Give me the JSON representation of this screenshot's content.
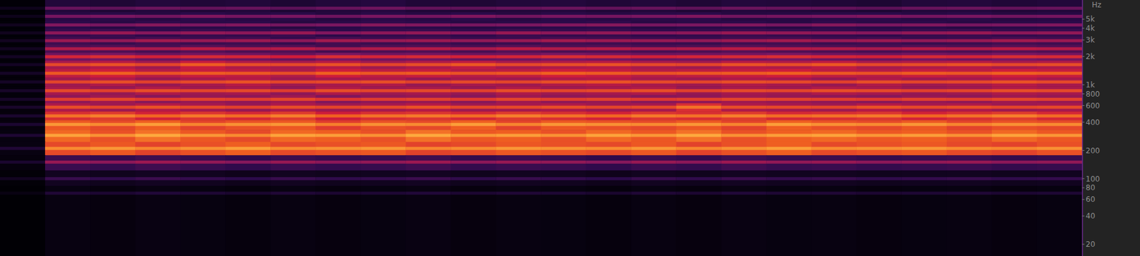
{
  "chart_data": {
    "type": "spectrogram",
    "y_label": "Hz",
    "log": "y",
    "grid": false,
    "tick_labels": "y",
    "xlim": [
      0,
      24
    ],
    "x": [
      0.5,
      1.5,
      2.5,
      3.5,
      4.5,
      5.5,
      6.5,
      7.5,
      8.5,
      9.5,
      10.5,
      11.5,
      12.5,
      13.5,
      14.5,
      15.5,
      16.5,
      17.5,
      18.5,
      19.5,
      20.5,
      21.5,
      22.5,
      23.5
    ],
    "ylim": [
      15,
      8000
    ],
    "yticks": [
      20,
      40,
      60,
      80,
      100,
      200,
      400,
      600,
      800,
      {
        "value": 1000,
        "label": "1k"
      },
      {
        "value": 2000,
        "label": "2k"
      },
      {
        "value": 3000,
        "label": "3k"
      },
      {
        "value": 4000,
        "label": "4k"
      },
      {
        "value": 5000,
        "label": "5k"
      }
    ],
    "y": [
      6540,
      5360,
      4340,
      3570,
      2950,
      2420,
      1990,
      1640,
      1325,
      1072,
      865,
      700,
      577,
      466,
      378,
      289,
      210,
      150,
      100,
      70
    ],
    "zlim": [
      -100,
      0
    ],
    "z": [
      [
        -92,
        -60,
        -62,
        -59,
        -61,
        -60,
        -63,
        -60,
        -58,
        -61,
        -62,
        -60,
        -59,
        -61,
        -60,
        -62,
        -59,
        -60,
        -61,
        -63,
        -60,
        -59,
        -61,
        -60
      ],
      [
        -92,
        -56,
        -55,
        -57,
        -54,
        -56,
        -55,
        -58,
        -55,
        -56,
        -54,
        -57,
        -55,
        -56,
        -55,
        -54,
        -57,
        -56,
        -55,
        -54,
        -56,
        -55,
        -57,
        -56
      ],
      [
        -91,
        -54,
        -56,
        -53,
        -55,
        -54,
        -57,
        -55,
        -53,
        -54,
        -56,
        -55,
        -54,
        -53,
        -56,
        -55,
        -54,
        -56,
        -53,
        -55,
        -54,
        -56,
        -55,
        -54
      ],
      [
        -91,
        -52,
        -50,
        -53,
        -51,
        -52,
        -50,
        -54,
        -52,
        -51,
        -53,
        -50,
        -52,
        -51,
        -53,
        -52,
        -50,
        -51,
        -52,
        -53,
        -51,
        -50,
        -52,
        -51
      ],
      [
        -90,
        -49,
        -51,
        -48,
        -50,
        -49,
        -52,
        -48,
        -50,
        -49,
        -51,
        -50,
        -48,
        -49,
        -50,
        -51,
        -49,
        -48,
        -50,
        -49,
        -51,
        -50,
        -48,
        -49
      ],
      [
        -90,
        -46,
        -45,
        -47,
        -44,
        -46,
        -45,
        -48,
        -46,
        -45,
        -47,
        -44,
        -46,
        -45,
        -47,
        -46,
        -44,
        -45,
        -46,
        -47,
        -45,
        -46,
        -44,
        -45
      ],
      [
        -89,
        -38,
        -36,
        -39,
        -37,
        -38,
        -40,
        -36,
        -38,
        -37,
        -39,
        -38,
        -36,
        -37,
        -39,
        -38,
        -37,
        -36,
        -38,
        -39,
        -37,
        -38,
        -36,
        -37
      ],
      [
        -89,
        -30,
        -28,
        -31,
        -26,
        -29,
        -30,
        -28,
        -31,
        -29,
        -27,
        -30,
        -29,
        -28,
        -30,
        -31,
        -28,
        -29,
        -27,
        -30,
        -29,
        -28,
        -30,
        -29
      ],
      [
        -88,
        -27,
        -25,
        -28,
        -26,
        -27,
        -29,
        -25,
        -27,
        -26,
        -28,
        -27,
        -25,
        -26,
        -28,
        -27,
        -26,
        -25,
        -27,
        -28,
        -26,
        -27,
        -25,
        -26
      ],
      [
        -88,
        -31,
        -29,
        -32,
        -30,
        -28,
        -31,
        -30,
        -29,
        -32,
        -30,
        -31,
        -29,
        -28,
        -30,
        -31,
        -29,
        -30,
        -32,
        -29,
        -31,
        -30,
        -28,
        -30
      ],
      [
        -87,
        -30,
        -32,
        -29,
        -31,
        -30,
        -33,
        -29,
        -31,
        -30,
        -32,
        -29,
        -31,
        -30,
        -29,
        -32,
        -30,
        -31,
        -29,
        -30,
        -32,
        -31,
        -29,
        -30
      ],
      [
        -87,
        -33,
        -31,
        -34,
        -32,
        -33,
        -31,
        -35,
        -33,
        -32,
        -34,
        -31,
        -33,
        -32,
        -34,
        -33,
        -31,
        -32,
        -33,
        -34,
        -32,
        -33,
        -31,
        -32
      ],
      [
        -86,
        -29,
        -31,
        -28,
        -30,
        -32,
        -29,
        -31,
        -30,
        -28,
        -31,
        -30,
        -29,
        -31,
        -30,
        -22,
        -29,
        -30,
        -31,
        -28,
        -30,
        -29,
        -31,
        -30
      ],
      [
        -85,
        -22,
        -20,
        -24,
        -21,
        -23,
        -20,
        -25,
        -22,
        -21,
        -23,
        -20,
        -22,
        -24,
        -21,
        -22,
        -20,
        -23,
        -22,
        -21,
        -24,
        -22,
        -20,
        -23
      ],
      [
        -84,
        -16,
        -18,
        -15,
        -19,
        -17,
        -16,
        -20,
        -17,
        -18,
        -15,
        -19,
        -16,
        -17,
        -18,
        -16,
        -19,
        -15,
        -17,
        -18,
        -16,
        -19,
        -17,
        -18
      ],
      [
        -83,
        -14,
        -17,
        -13,
        -16,
        -18,
        -14,
        -15,
        -17,
        -13,
        -16,
        -15,
        -17,
        -14,
        -16,
        -13,
        -17,
        -15,
        -14,
        -16,
        -15,
        -17,
        -14,
        -16
      ],
      [
        -82,
        -18,
        -16,
        -19,
        -17,
        -15,
        -18,
        -17,
        -16,
        -19,
        -18,
        -16,
        -17,
        -18,
        -16,
        -19,
        -17,
        -15,
        -18,
        -17,
        -16,
        -18,
        -19,
        -17
      ],
      [
        -85,
        -50,
        -52,
        -49,
        -51,
        -53,
        -50,
        -52,
        -51,
        -49,
        -52,
        -50,
        -51,
        -53,
        -50,
        -52,
        -49,
        -51,
        -50,
        -52,
        -51,
        -50,
        -52,
        -51
      ],
      [
        -90,
        -72,
        -74,
        -71,
        -73,
        -75,
        -72,
        -74,
        -73,
        -71,
        -74,
        -72,
        -73,
        -75,
        -72,
        -74,
        -71,
        -73,
        -72,
        -74,
        -73,
        -72,
        -74,
        -73
      ],
      [
        -95,
        -82,
        -84,
        -81,
        -83,
        -85,
        -82,
        -84,
        -83,
        -81,
        -84,
        -82,
        -83,
        -85,
        -82,
        -84,
        -81,
        -83,
        -82,
        -84,
        -83,
        -82,
        -84,
        -83
      ]
    ]
  }
}
